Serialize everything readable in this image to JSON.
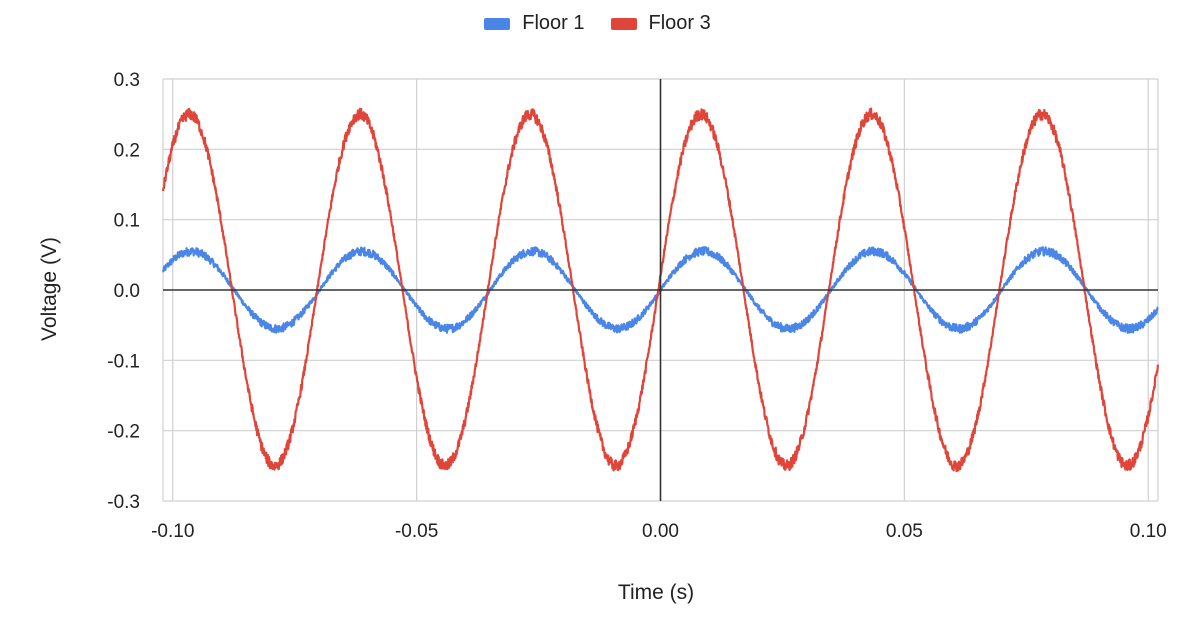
{
  "chart_data": {
    "type": "line",
    "title": "",
    "xlabel": "Time (s)",
    "ylabel": "Voltage (V)",
    "xlim": [
      -0.102,
      0.102
    ],
    "ylim": [
      -0.3,
      0.3
    ],
    "x_ticks": [
      -0.1,
      -0.05,
      0.0,
      0.05,
      0.1
    ],
    "x_tick_labels": [
      "-0.10",
      "-0.05",
      "0.00",
      "0.05",
      "0.10"
    ],
    "y_ticks": [
      0.3,
      0.2,
      0.1,
      0.0,
      -0.1,
      -0.2,
      -0.3
    ],
    "y_tick_labels": [
      "0.3",
      "0.2",
      "0.1",
      "0.0",
      "-0.1",
      "-0.2",
      "-0.3"
    ],
    "grid": true,
    "legend_position": "top-center",
    "series": [
      {
        "name": "Floor 1",
        "color": "#4a86e8",
        "amplitude": 0.055,
        "frequency_hz": 28.6,
        "zero_crossing_rising_s": 0.0,
        "noise": 0.006
      },
      {
        "name": "Floor 3",
        "color": "#e0453a",
        "amplitude": 0.25,
        "frequency_hz": 28.6,
        "zero_crossing_rising_s": -0.00045,
        "noise": 0.008
      }
    ]
  }
}
